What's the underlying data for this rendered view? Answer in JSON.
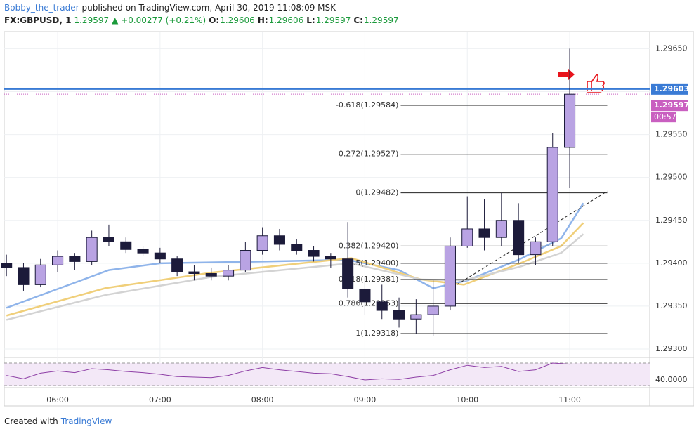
{
  "header": {
    "author": "Bobby_the_trader",
    "published": "published on TradingView.com, April 30, 2019 11:08:09 MSK"
  },
  "legend": {
    "symbol": "FX:GBPUSD, 1",
    "last": "1.29597",
    "change": "▲ +0.00277 (+0.21%)",
    "o_label": "O:",
    "o": "1.29606",
    "h_label": "H:",
    "h": "1.29606",
    "l_label": "L:",
    "l": "1.29597",
    "c_label": "C:",
    "c": "1.29597"
  },
  "chart_data": {
    "type": "candlestick",
    "x": [
      330,
      340,
      350,
      360,
      370,
      380,
      390,
      400,
      410,
      420,
      430,
      440,
      450,
      460,
      470,
      480,
      490,
      500,
      510,
      520,
      530,
      540,
      550,
      560,
      570,
      580,
      590,
      600,
      610,
      620,
      630,
      640,
      650,
      660
    ],
    "open": [
      1.294,
      1.29395,
      1.29375,
      1.29398,
      1.29408,
      1.29402,
      1.2943,
      1.29425,
      1.29416,
      1.29412,
      1.29405,
      1.2939,
      1.29388,
      1.29385,
      1.29392,
      1.29415,
      1.29432,
      1.29422,
      1.29415,
      1.29408,
      1.29405,
      1.2937,
      1.29355,
      1.29345,
      1.29335,
      1.2934,
      1.2935,
      1.2942,
      1.2944,
      1.2943,
      1.2945,
      1.2941,
      1.29425,
      1.29535
    ],
    "high": [
      1.2941,
      1.294,
      1.29405,
      1.29415,
      1.29412,
      1.29438,
      1.29445,
      1.2943,
      1.2942,
      1.29418,
      1.29408,
      1.29398,
      1.29395,
      1.29398,
      1.29425,
      1.29442,
      1.2944,
      1.29428,
      1.2942,
      1.29412,
      1.29448,
      1.29385,
      1.29375,
      1.2936,
      1.29358,
      1.2938,
      1.2943,
      1.29478,
      1.29475,
      1.29482,
      1.2947,
      1.2943,
      1.29552,
      1.2965
    ],
    "low": [
      1.29385,
      1.29368,
      1.29372,
      1.2939,
      1.29392,
      1.29398,
      1.2942,
      1.29412,
      1.29408,
      1.294,
      1.29385,
      1.2938,
      1.2938,
      1.2938,
      1.2939,
      1.2941,
      1.29415,
      1.2941,
      1.29402,
      1.29395,
      1.2936,
      1.2934,
      1.29335,
      1.29325,
      1.29318,
      1.29315,
      1.29345,
      1.29418,
      1.29415,
      1.2942,
      1.294,
      1.29398,
      1.2942,
      1.29488
    ],
    "close": [
      1.29395,
      1.29375,
      1.29398,
      1.29408,
      1.29402,
      1.2943,
      1.29425,
      1.29416,
      1.29412,
      1.29405,
      1.2939,
      1.29388,
      1.29385,
      1.29392,
      1.29415,
      1.29432,
      1.29422,
      1.29415,
      1.29408,
      1.29405,
      1.2937,
      1.29355,
      1.29345,
      1.29335,
      1.2934,
      1.2935,
      1.2942,
      1.2944,
      1.2943,
      1.2945,
      1.2941,
      1.29425,
      1.29535,
      1.29597
    ],
    "up_color": "#b9a3e3",
    "down_color": "#1c1b3a",
    "wick_color": "#1c1b3a",
    "xlim": [
      328.7,
      706.9
    ],
    "xticks": [
      {
        "value": 360,
        "label": "06:00"
      },
      {
        "value": 420,
        "label": "07:00"
      },
      {
        "value": 480,
        "label": "08:00"
      },
      {
        "value": 540,
        "label": "09:00"
      },
      {
        "value": 600,
        "label": "10:00"
      },
      {
        "value": 660,
        "label": "11:00"
      }
    ],
    "ylim": [
      1.29291,
      1.2967
    ],
    "yticks": [
      {
        "value": 1.293,
        "label": "1.29300"
      },
      {
        "value": 1.2935,
        "label": "1.29350"
      },
      {
        "value": 1.294,
        "label": "1.29400"
      },
      {
        "value": 1.2945,
        "label": "1.29450"
      },
      {
        "value": 1.295,
        "label": "1.29500"
      },
      {
        "value": 1.2955,
        "label": "1.29550"
      },
      {
        "value": 1.296,
        "label": "1.29600"
      },
      {
        "value": 1.2965,
        "label": "1.29650"
      }
    ],
    "grid": true,
    "moving_averages": [
      {
        "color": "#8fb4ea",
        "x": [
          330,
          390,
          420,
          480,
          530,
          560,
          580,
          600,
          630,
          655,
          668
        ],
        "values": [
          1.29348,
          1.29392,
          1.294,
          1.29402,
          1.29404,
          1.29392,
          1.29371,
          1.2938,
          1.29404,
          1.29429,
          1.2947
        ]
      },
      {
        "color": "#f0cf7a",
        "x": [
          330,
          388,
          450,
          532,
          573,
          598,
          631,
          655,
          668
        ],
        "values": [
          1.29339,
          1.29371,
          1.29389,
          1.29406,
          1.29381,
          1.29375,
          1.294,
          1.2942,
          1.29447
        ]
      },
      {
        "color": "#d3d3d3",
        "x": [
          330,
          388,
          450,
          532,
          573,
          598,
          631,
          655,
          668
        ],
        "values": [
          1.29334,
          1.29363,
          1.29384,
          1.294,
          1.29381,
          1.2938,
          1.29396,
          1.29412,
          1.29434
        ]
      }
    ],
    "hline": {
      "value": 1.29603,
      "label": "1.29603",
      "color": "#3a7bd5"
    },
    "last_price": {
      "value": 1.29597,
      "label": "1.29597",
      "color": "#c95fc0"
    },
    "countdown": "00:57",
    "fib": {
      "x": [
        561,
        682
      ],
      "levels": [
        {
          "value": 1.29584,
          "label": "-0.618(1.29584)"
        },
        {
          "value": 1.29527,
          "label": "-0.272(1.29527)"
        },
        {
          "value": 1.29482,
          "label": "0(1.29482)"
        },
        {
          "value": 1.2942,
          "label": "0.382(1.29420)"
        },
        {
          "value": 1.294,
          "label": "0.5(1.29400)"
        },
        {
          "value": 1.29381,
          "label": "0.618(1.29381)"
        },
        {
          "value": 1.29353,
          "label": "0.786(1.29353)"
        },
        {
          "value": 1.29318,
          "label": "1(1.29318)"
        }
      ]
    },
    "trendline": {
      "x": [
        589,
        682
      ],
      "values": [
        1.29369,
        1.29484
      ]
    },
    "rsi": {
      "color": "#8e3fa6",
      "x": [
        330,
        340,
        350,
        360,
        370,
        380,
        390,
        400,
        410,
        420,
        430,
        440,
        450,
        460,
        470,
        480,
        490,
        500,
        510,
        520,
        530,
        540,
        550,
        560,
        570,
        580,
        590,
        600,
        610,
        620,
        630,
        640,
        650,
        660
      ],
      "values": [
        48,
        42,
        52,
        56,
        53,
        60,
        58,
        55,
        53,
        50,
        46,
        45,
        44,
        48,
        56,
        62,
        58,
        55,
        52,
        51,
        46,
        40,
        42,
        41,
        45,
        48,
        58,
        66,
        62,
        64,
        55,
        58,
        70,
        68
      ],
      "ylim": [
        28.75,
        78.75
      ],
      "bands": [
        70,
        30
      ],
      "yticks": [
        {
          "value": 40,
          "label": "40.0000"
        }
      ]
    }
  },
  "footer": {
    "created": "Created with",
    "brand": "TradingView"
  }
}
